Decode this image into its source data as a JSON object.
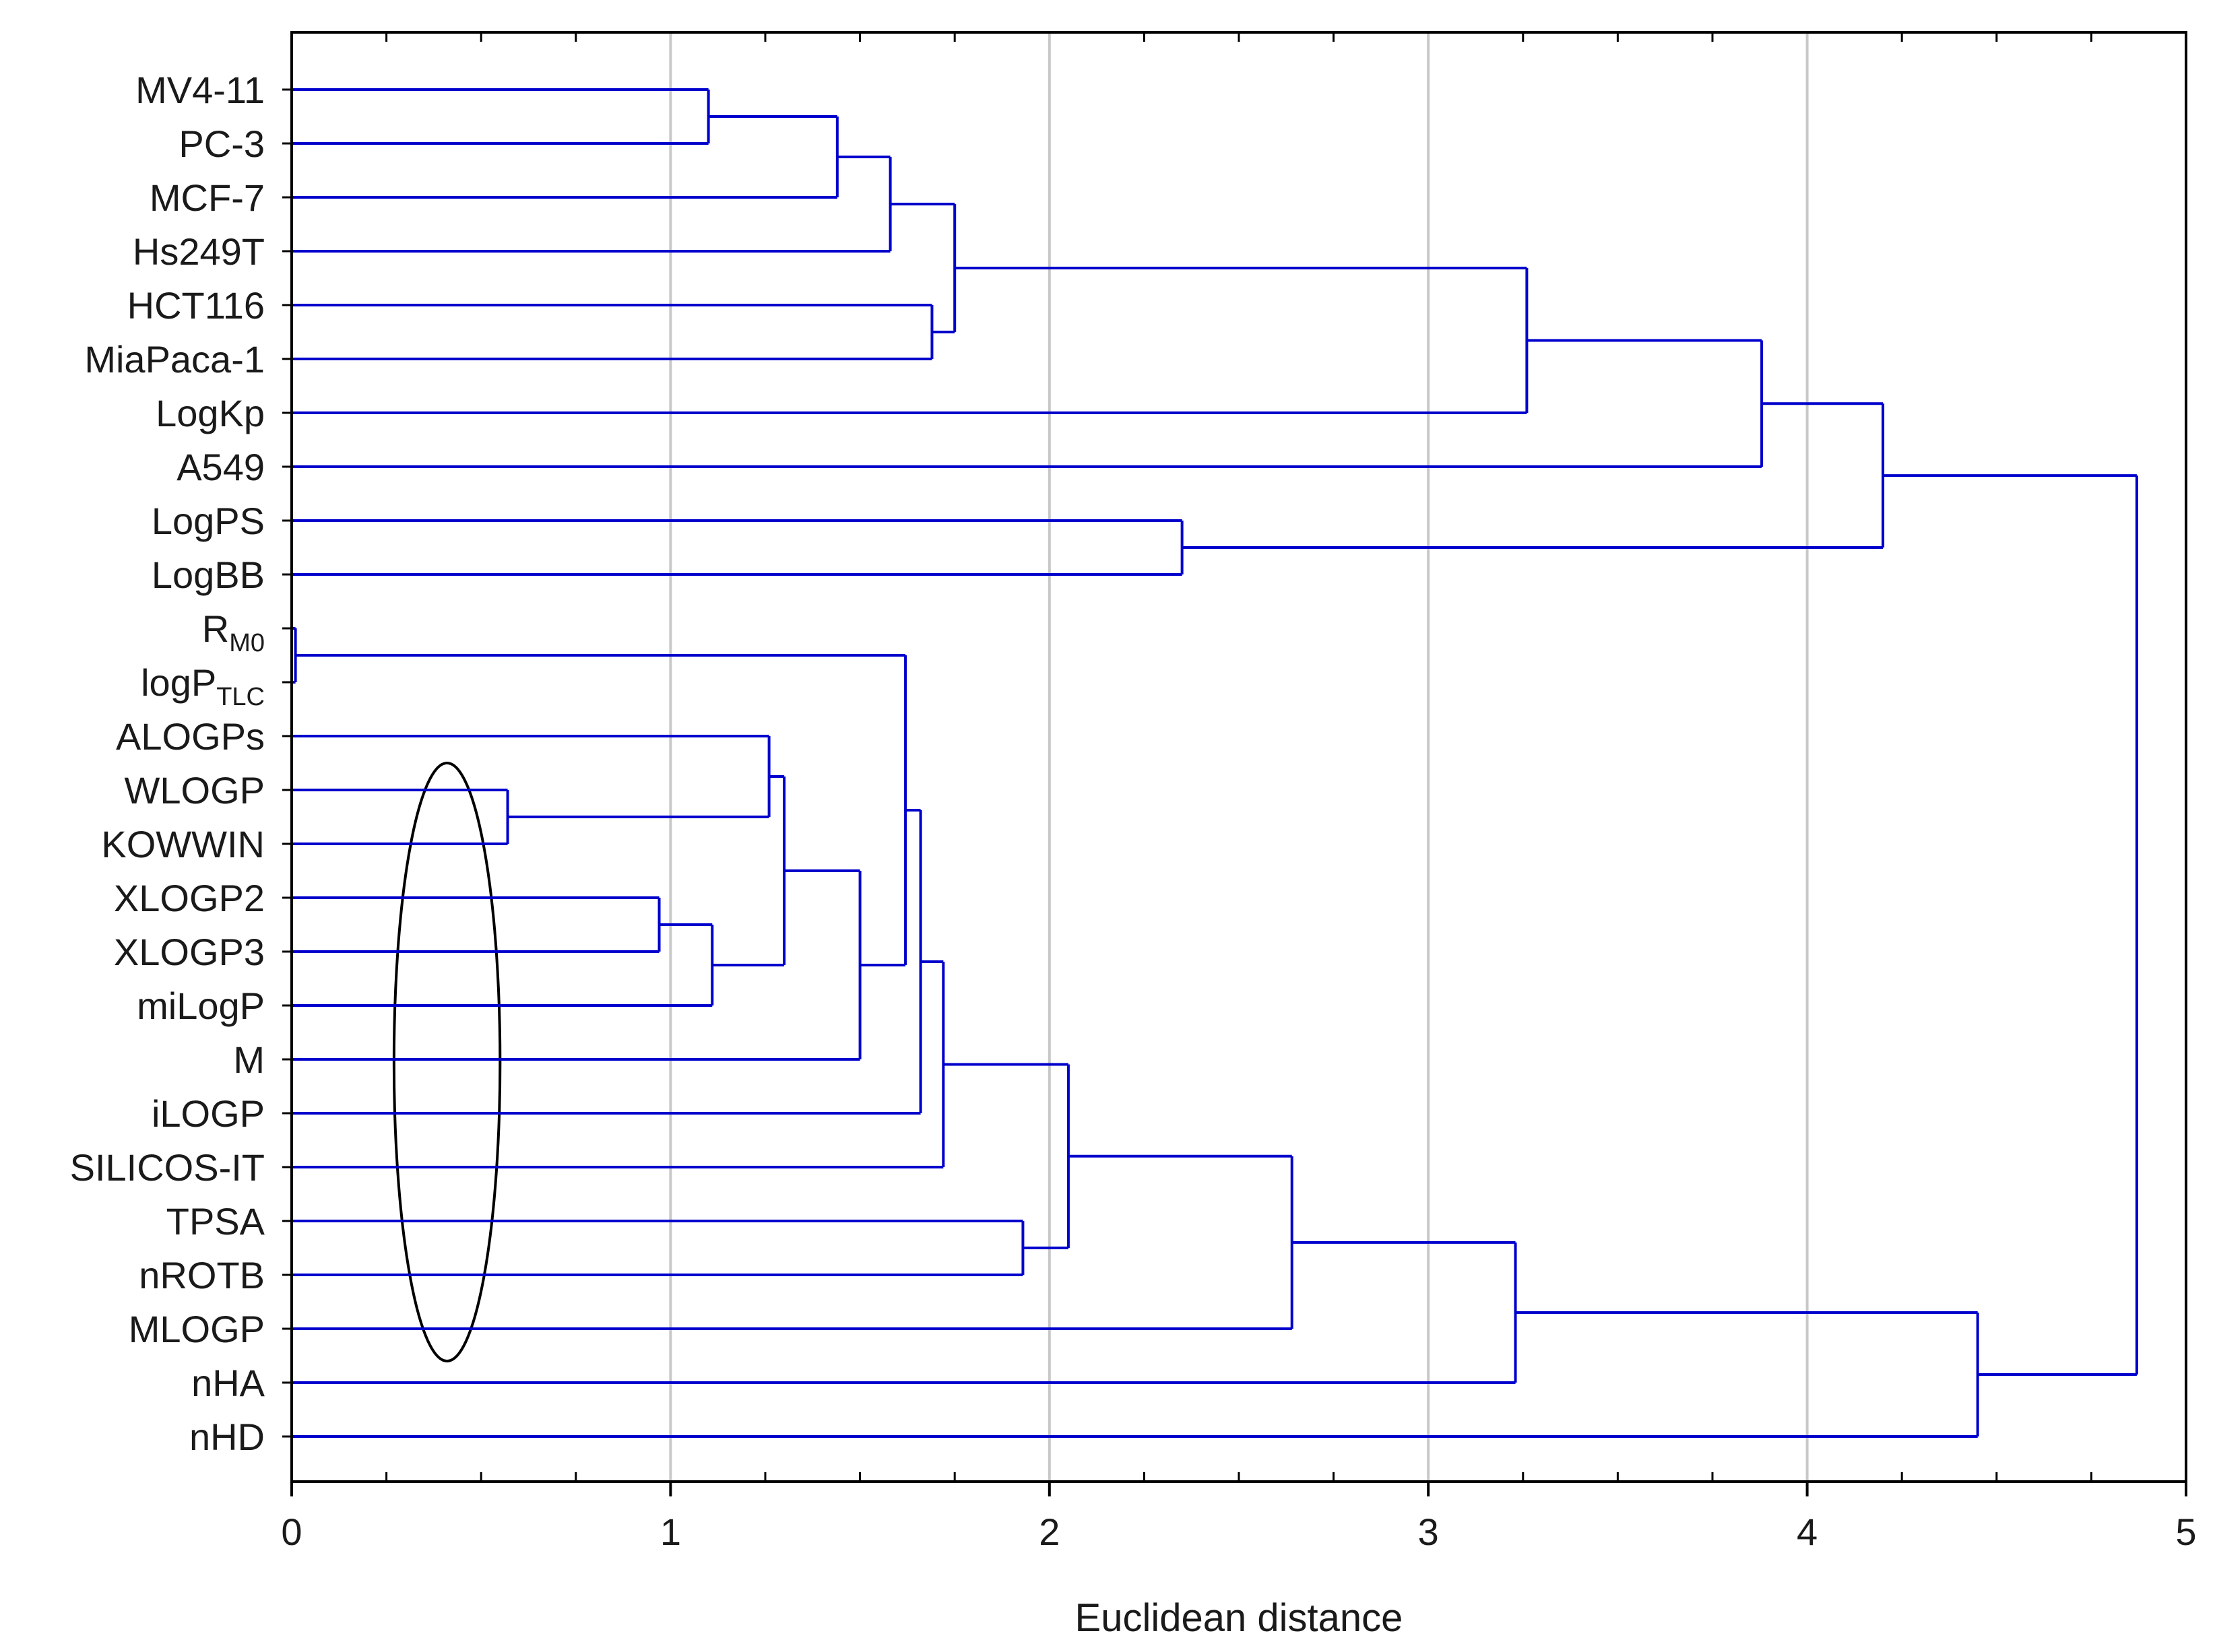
{
  "chart_data": {
    "type": "dendrogram",
    "orientation": "horizontal",
    "xlabel": "Euclidean distance",
    "xlim": [
      0,
      5
    ],
    "xticks": [
      "0",
      "1",
      "2",
      "3",
      "4",
      "5"
    ],
    "grid": "vertical",
    "leaves": [
      {
        "text": "MV4-11"
      },
      {
        "text": "PC-3"
      },
      {
        "text": "MCF-7"
      },
      {
        "text": "Hs249T"
      },
      {
        "text": "HCT116"
      },
      {
        "text": "MiaPaca-1"
      },
      {
        "text": "LogKp"
      },
      {
        "text": "A549"
      },
      {
        "text": "LogPS"
      },
      {
        "text": "LogBB"
      },
      {
        "text": "R",
        "sub": "M0"
      },
      {
        "text": "logP",
        "sub": "TLC"
      },
      {
        "text": "ALOGPs"
      },
      {
        "text": "WLOGP"
      },
      {
        "text": "KOWWIN"
      },
      {
        "text": "XLOGP2"
      },
      {
        "text": "XLOGP3"
      },
      {
        "text": "miLogP"
      },
      {
        "text": "M"
      },
      {
        "text": "iLOGP"
      },
      {
        "text": "SILICOS-IT"
      },
      {
        "text": "TPSA"
      },
      {
        "text": "nROTB"
      },
      {
        "text": "MLOGP"
      },
      {
        "text": "nHA"
      },
      {
        "text": "nHD"
      }
    ],
    "merges": [
      {
        "a": "L0",
        "b": "L1",
        "height": 1.1
      },
      {
        "a": "N0",
        "b": "L2",
        "height": 1.44
      },
      {
        "a": "N1",
        "b": "L3",
        "height": 1.58
      },
      {
        "a": "L4",
        "b": "L5",
        "height": 1.69
      },
      {
        "a": "N2",
        "b": "N3",
        "height": 1.75
      },
      {
        "a": "N4",
        "b": "L6",
        "height": 3.26
      },
      {
        "a": "N5",
        "b": "L7",
        "height": 3.88
      },
      {
        "a": "L8",
        "b": "L9",
        "height": 2.35
      },
      {
        "a": "N6",
        "b": "N7",
        "height": 4.2
      },
      {
        "a": "L10",
        "b": "L11",
        "height": 0.01
      },
      {
        "a": "L13",
        "b": "L14",
        "height": 0.57
      },
      {
        "a": "L12",
        "b": "N10",
        "height": 1.26
      },
      {
        "a": "L15",
        "b": "L16",
        "height": 0.97
      },
      {
        "a": "N12",
        "b": "L17",
        "height": 1.11
      },
      {
        "a": "N11",
        "b": "N13",
        "height": 1.3
      },
      {
        "a": "N14",
        "b": "L18",
        "height": 1.5
      },
      {
        "a": "N9",
        "b": "N15",
        "height": 1.62
      },
      {
        "a": "N16",
        "b": "L19",
        "height": 1.66
      },
      {
        "a": "N17",
        "b": "L20",
        "height": 1.72
      },
      {
        "a": "L21",
        "b": "L22",
        "height": 1.93
      },
      {
        "a": "N18",
        "b": "N19",
        "height": 2.05
      },
      {
        "a": "N20",
        "b": "L23",
        "height": 2.64
      },
      {
        "a": "N21",
        "b": "L24",
        "height": 3.23
      },
      {
        "a": "N22",
        "b": "L25",
        "height": 4.45
      },
      {
        "a": "N8",
        "b": "N23",
        "height": 4.87
      }
    ],
    "annotation": {
      "shape": "ellipse",
      "x_center": 0.41,
      "x_radius": 0.14,
      "from_leaf": 12.5,
      "to_leaf": 23.6
    },
    "colors": {
      "branch": "#0000cc",
      "grid": "#c8c8c8",
      "frame": "#000000",
      "annotation": "#000000"
    }
  }
}
